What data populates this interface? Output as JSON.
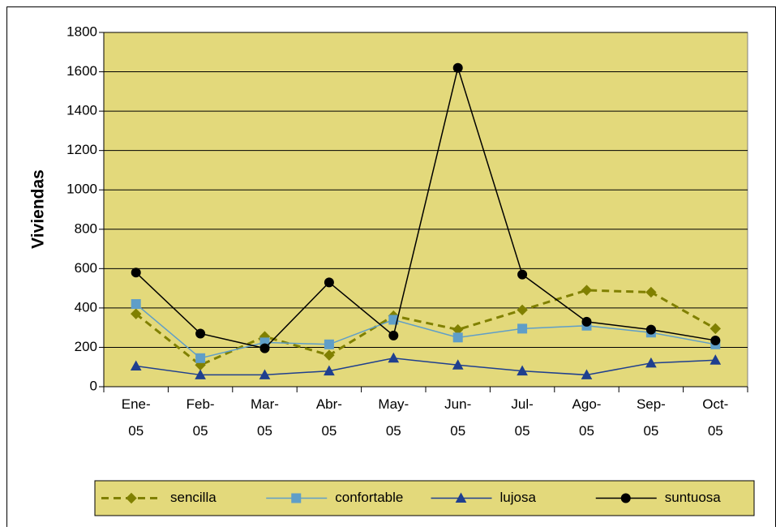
{
  "chart_data": {
    "type": "line",
    "y_label": "Viviendas",
    "categories": [
      "Ene-05",
      "Feb-05",
      "Mar-05",
      "Abr-05",
      "May-05",
      "Jun-05",
      "Jul-05",
      "Ago-05",
      "Sep-05",
      "Oct-05"
    ],
    "series": [
      {
        "name": "sencilla",
        "color": "#808000",
        "dash": true,
        "marker": "diamond",
        "values": [
          370,
          110,
          255,
          160,
          360,
          290,
          390,
          490,
          480,
          295
        ]
      },
      {
        "name": "confortable",
        "color": "#5f9ec8",
        "dash": false,
        "marker": "square",
        "values": [
          420,
          145,
          225,
          215,
          340,
          250,
          295,
          310,
          275,
          215
        ]
      },
      {
        "name": "lujosa",
        "color": "#1f3f8f",
        "dash": false,
        "marker": "triangle",
        "values": [
          105,
          60,
          60,
          80,
          145,
          110,
          80,
          60,
          120,
          135
        ]
      },
      {
        "name": "suntuosa",
        "color": "#000000",
        "dash": false,
        "marker": "circle",
        "values": [
          580,
          270,
          195,
          530,
          260,
          1620,
          570,
          330,
          290,
          235
        ]
      }
    ],
    "ylim": [
      0,
      1800
    ],
    "yticks": [
      0,
      200,
      400,
      600,
      800,
      1000,
      1200,
      1400,
      1600,
      1800
    ],
    "grid": true,
    "plot_background": "#e3d97b",
    "legend": "bottom"
  }
}
